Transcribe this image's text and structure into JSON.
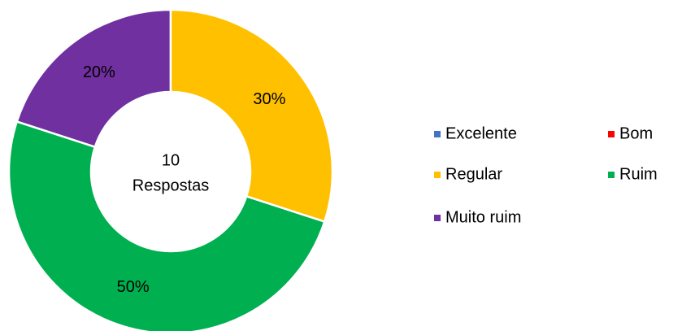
{
  "chart_data": {
    "type": "donut",
    "categories": [
      "Excelente",
      "Bom",
      "Regular",
      "Ruim",
      "Muito ruim"
    ],
    "values": [
      0,
      0,
      30,
      50,
      20
    ],
    "value_labels": [
      null,
      null,
      "30%",
      "50%",
      "20%"
    ],
    "colors": [
      "#4472c4",
      "#ff0000",
      "#ffc000",
      "#00b050",
      "#7030a0"
    ],
    "center_label": {
      "count": 10,
      "text": "Respostas"
    },
    "legend": "right"
  }
}
